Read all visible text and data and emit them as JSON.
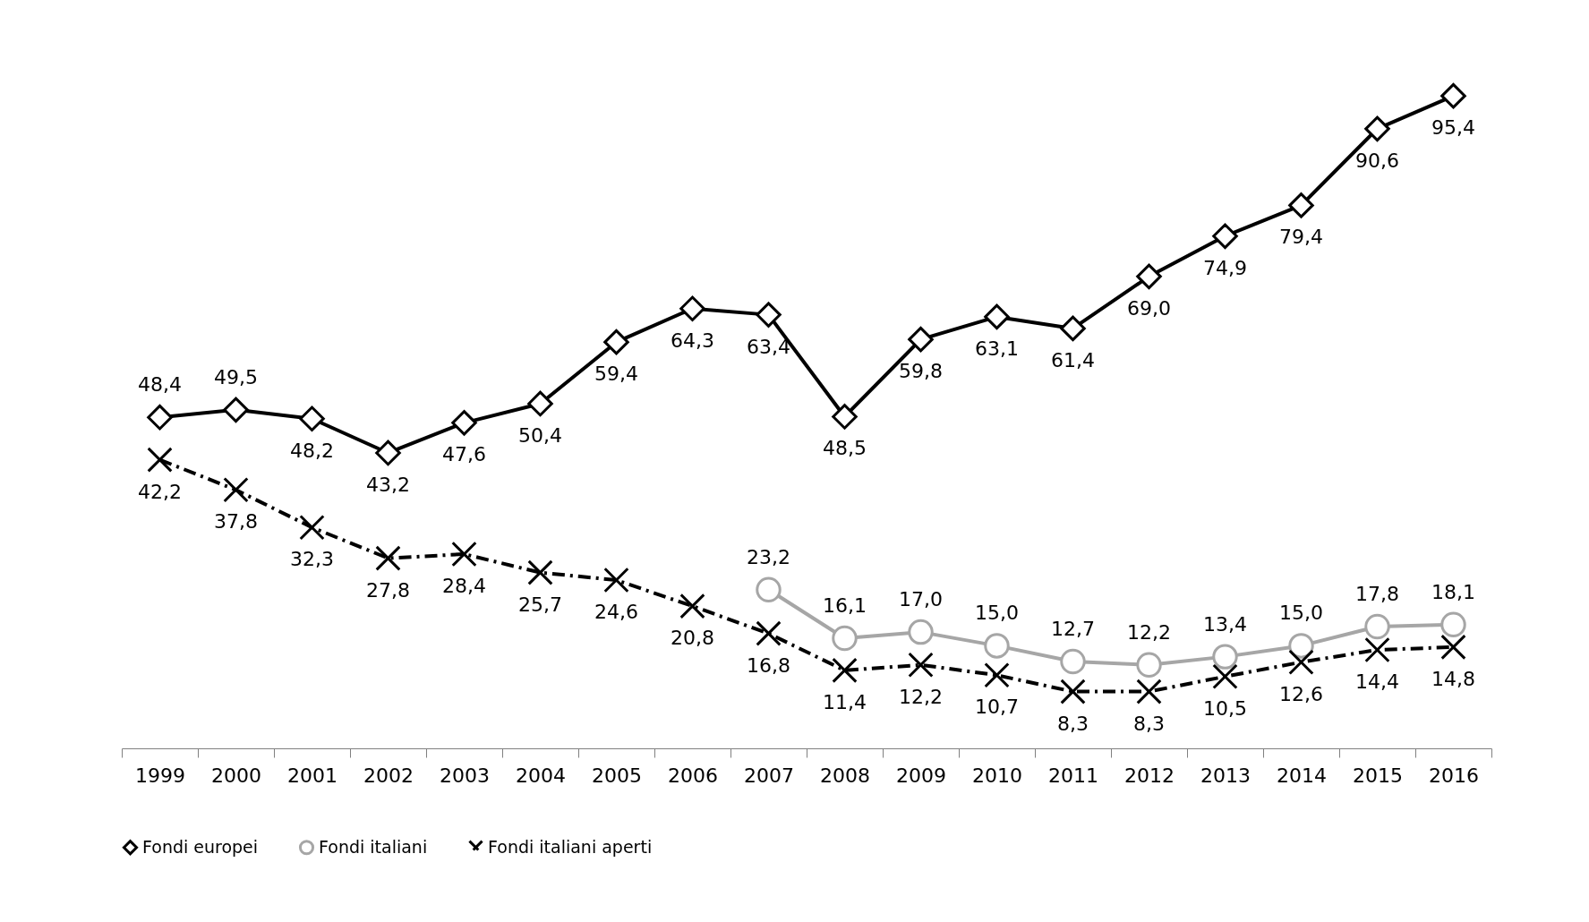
{
  "chart_data": {
    "type": "line",
    "categories": [
      "1999",
      "2000",
      "2001",
      "2002",
      "2003",
      "2004",
      "2005",
      "2006",
      "2007",
      "2008",
      "2009",
      "2010",
      "2011",
      "2012",
      "2013",
      "2014",
      "2015",
      "2016"
    ],
    "series": [
      {
        "name": "Fondi europei",
        "color": "#000000",
        "marker": "diamond",
        "line_style": "solid",
        "values": [
          48.4,
          49.5,
          48.2,
          43.2,
          47.6,
          50.4,
          59.4,
          64.3,
          63.4,
          48.5,
          59.8,
          63.1,
          61.4,
          69.0,
          74.9,
          79.4,
          90.6,
          95.4
        ],
        "value_labels": [
          "48,4",
          "49,5",
          "48,2",
          "43,2",
          "47,6",
          "50,4",
          "59,4",
          "64,3",
          "63,4",
          "48,5",
          "59,8",
          "63,1",
          "61,4",
          "69,0",
          "74,9",
          "79,4",
          "90,6",
          "95,4"
        ]
      },
      {
        "name": "Fondi italiani",
        "color": "#a6a6a6",
        "marker": "circle",
        "line_style": "solid",
        "values": [
          null,
          null,
          null,
          null,
          null,
          null,
          null,
          null,
          23.2,
          16.1,
          17.0,
          15.0,
          12.7,
          12.2,
          13.4,
          15.0,
          17.8,
          18.1
        ],
        "value_labels": [
          null,
          null,
          null,
          null,
          null,
          null,
          null,
          null,
          "23,2",
          "16,1",
          "17,0",
          "15,0",
          "12,7",
          "12,2",
          "13,4",
          "15,0",
          "17,8",
          "18,1"
        ]
      },
      {
        "name": "Fondi italiani aperti",
        "color": "#000000",
        "marker": "cross",
        "line_style": "dashed",
        "values": [
          42.2,
          37.8,
          32.3,
          27.8,
          28.4,
          25.7,
          24.6,
          20.8,
          16.8,
          11.4,
          12.2,
          10.7,
          8.3,
          8.3,
          10.5,
          12.6,
          14.4,
          14.8
        ],
        "value_labels": [
          "42,2",
          "37,8",
          "32,3",
          "27,8",
          "28,4",
          "25,7",
          "24,6",
          "20,8",
          "16,8",
          "11,4",
          "12,2",
          "10,7",
          "8,3",
          "8,3",
          "10,5",
          "12,6",
          "14,4",
          "14,8"
        ]
      }
    ],
    "legend": "bottom"
  }
}
